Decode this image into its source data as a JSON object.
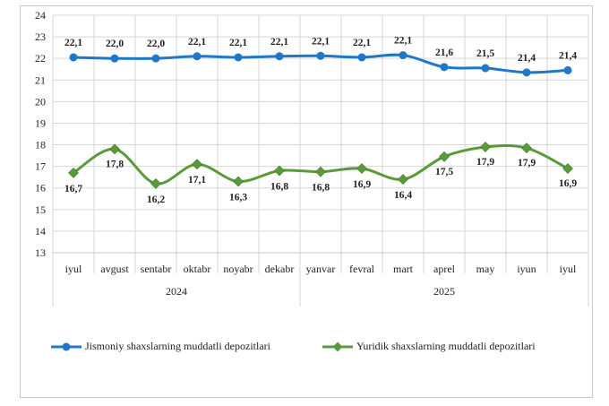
{
  "chart_data": {
    "type": "line",
    "title": "",
    "ylim": [
      13,
      24
    ],
    "yticks": [
      "24",
      "23",
      "22",
      "21",
      "20",
      "19",
      "18",
      "17",
      "16",
      "15",
      "14",
      "13"
    ],
    "categories": [
      "iyul",
      "avgust",
      "sentabr",
      "oktabr",
      "noyabr",
      "dekabr",
      "yanvar",
      "fevral",
      "mart",
      "aprel",
      "may",
      "iyun",
      "iyul"
    ],
    "groups": [
      {
        "label": "2024",
        "start": 0,
        "end": 5
      },
      {
        "label": "2025",
        "start": 6,
        "end": 12
      }
    ],
    "series": [
      {
        "name": "Jismoniy shaxslarning muddatli depozitlari",
        "color": "#1f77c9",
        "marker": "circle",
        "values": [
          22.05,
          22.0,
          22.0,
          22.1,
          22.05,
          22.1,
          22.12,
          22.05,
          22.15,
          21.6,
          21.55,
          21.35,
          21.45
        ],
        "labels": [
          "22,1",
          "22,0",
          "22,0",
          "22,1",
          "22,1",
          "22,1",
          "22,1",
          "22,1",
          "22,1",
          "21,6",
          "21,5",
          "21,4",
          "21,4"
        ]
      },
      {
        "name": "Yuridik shaxslarning muddatli depozitlari",
        "color": "#5a9a3a",
        "marker": "diamond",
        "values": [
          16.7,
          17.8,
          16.2,
          17.1,
          16.3,
          16.8,
          16.75,
          16.9,
          16.4,
          17.45,
          17.9,
          17.85,
          16.9
        ],
        "labels": [
          "16,7",
          "17,8",
          "16,2",
          "17,1",
          "16,3",
          "16,8",
          "16,8",
          "16,9",
          "16,4",
          "17,5",
          "17,9",
          "17,9",
          "16,9"
        ]
      }
    ]
  }
}
